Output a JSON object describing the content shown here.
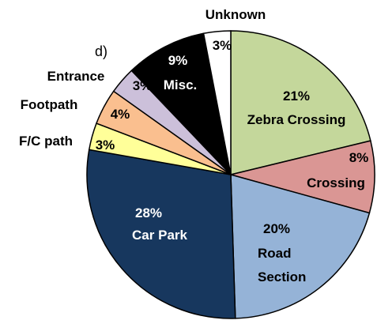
{
  "chart_data": {
    "type": "pie",
    "panel_label": "d)",
    "categories": [
      "Zebra Crossing",
      "Crossing",
      "Road Section",
      "Car Park",
      "F/C path",
      "Footpath",
      "Entrance",
      "Misc.",
      "Unknown"
    ],
    "values": [
      21,
      8,
      20,
      28,
      3,
      4,
      3,
      9,
      3
    ],
    "value_labels": [
      "21%",
      "8%",
      "20%",
      "28%",
      "3%",
      "4%",
      "3%",
      "9%",
      "3%"
    ],
    "colors": [
      "#c4d79b",
      "#da9694",
      "#95b3d7",
      "#17375e",
      "#ffff99",
      "#fabf8f",
      "#ccc0da",
      "#000000",
      "#ffffff"
    ]
  }
}
